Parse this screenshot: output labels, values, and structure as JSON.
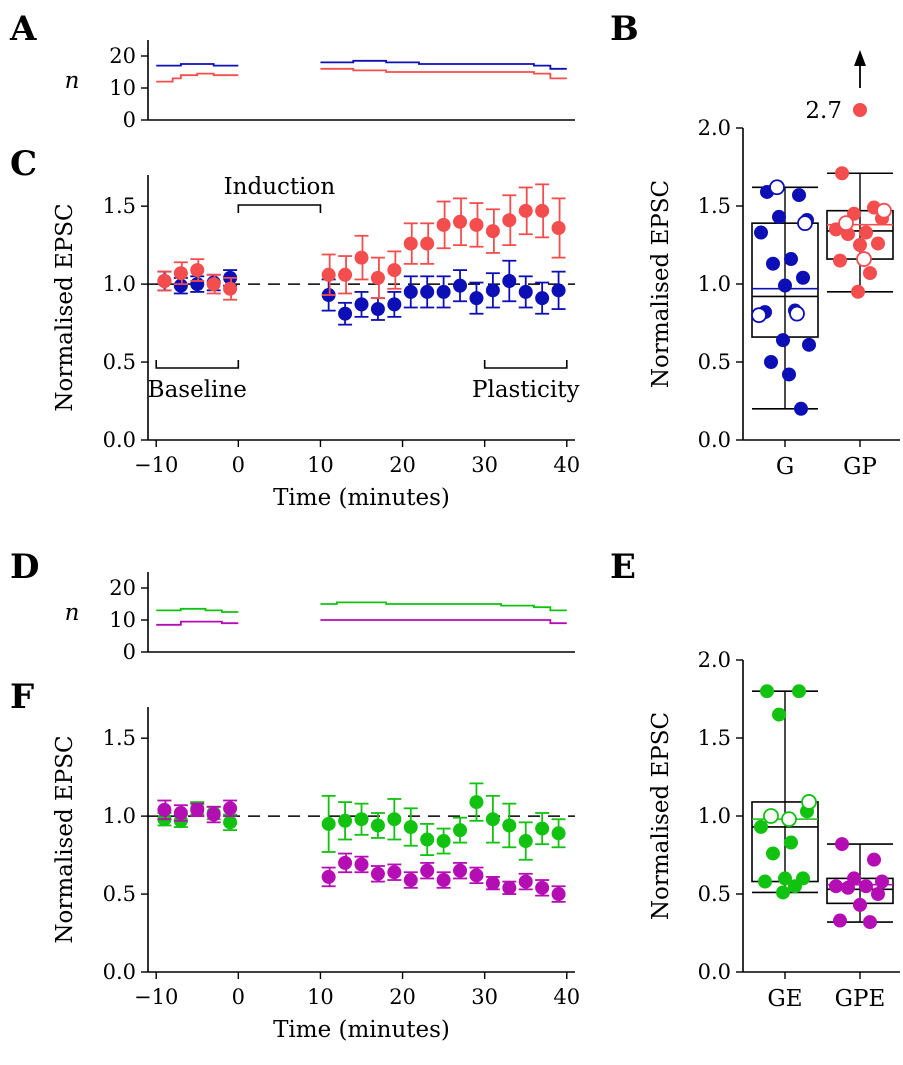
{
  "figure": {
    "panel_letters": [
      "A",
      "B",
      "C",
      "D",
      "E",
      "F"
    ],
    "n_label": "n",
    "epsc_label": "Normalised EPSC",
    "time_label": "Time (minutes)",
    "induction_label": "Induction",
    "baseline_label": "Baseline",
    "plasticity_label": "Plasticity",
    "outlier_label": "2.7"
  },
  "colors": {
    "red": "#f44d4d",
    "blue": "#0b0fb5",
    "green": "#11c211",
    "magenta": "#b40db4",
    "black": "#000000"
  },
  "chart_data": [
    {
      "panel": "A",
      "type": "line",
      "ylabel": "n",
      "ylim": [
        0,
        25
      ],
      "yticks": [
        0,
        10,
        20
      ],
      "xlim": [
        -11,
        41
      ],
      "series": [
        {
          "color": "blue",
          "segments": [
            {
              "x": [
                -10,
                -9,
                -8,
                -7,
                -6,
                -5,
                -4,
                -3,
                -2,
                -1,
                0
              ],
              "y": [
                17,
                17,
                17,
                17.5,
                17.5,
                17.5,
                17.5,
                17,
                17,
                17,
                17
              ]
            },
            {
              "x": [
                10,
                12,
                14,
                16,
                18,
                20,
                22,
                24,
                26,
                28,
                30,
                32,
                34,
                36,
                38,
                40
              ],
              "y": [
                18,
                18,
                18.5,
                18.5,
                18,
                18,
                17.5,
                17.5,
                17.5,
                17.5,
                17.5,
                17.5,
                17.5,
                17,
                16,
                16
              ]
            }
          ]
        },
        {
          "color": "red",
          "segments": [
            {
              "x": [
                -10,
                -9,
                -8,
                -7,
                -6,
                -5,
                -4,
                -3,
                -2,
                -1,
                0
              ],
              "y": [
                12,
                12,
                13,
                14,
                14,
                14.5,
                14.5,
                14,
                14,
                14,
                14
              ]
            },
            {
              "x": [
                10,
                12,
                14,
                16,
                18,
                20,
                22,
                24,
                26,
                28,
                30,
                32,
                34,
                36,
                38,
                40
              ],
              "y": [
                16,
                16,
                15.5,
                15.5,
                15,
                15,
                15,
                15,
                15,
                15,
                15,
                15,
                15,
                14.5,
                13,
                13
              ]
            }
          ]
        }
      ]
    },
    {
      "panel": "C",
      "type": "scatter",
      "xlabel": "Time (minutes)",
      "ylabel": "Normalised EPSC",
      "xlim": [
        -11,
        41
      ],
      "ylim": [
        0,
        1.7
      ],
      "xticks": [
        -10,
        0,
        10,
        20,
        30,
        40
      ],
      "xtick_labels": [
        "−10",
        "0",
        "10",
        "20",
        "30",
        "40"
      ],
      "yticks": [
        0,
        0.5,
        1.0,
        1.5
      ],
      "ytick_labels": [
        "0.0",
        "0.5",
        "1.0",
        "1.5"
      ],
      "reference_line": 1.0,
      "series": [
        {
          "color": "blue",
          "x": [
            -9,
            -7,
            -5,
            -3,
            -1,
            11,
            13,
            15,
            17,
            19,
            21,
            23,
            25,
            27,
            29,
            31,
            33,
            35,
            37,
            39
          ],
          "y": [
            1.02,
            0.99,
            1.0,
            1.01,
            1.04,
            0.93,
            0.81,
            0.87,
            0.84,
            0.87,
            0.95,
            0.95,
            0.95,
            0.99,
            0.91,
            0.96,
            1.02,
            0.95,
            0.91,
            0.96
          ],
          "err": [
            0.06,
            0.05,
            0.05,
            0.05,
            0.05,
            0.1,
            0.07,
            0.08,
            0.07,
            0.08,
            0.1,
            0.1,
            0.1,
            0.1,
            0.1,
            0.11,
            0.13,
            0.1,
            0.1,
            0.12
          ]
        },
        {
          "color": "red",
          "x": [
            -9,
            -7,
            -5,
            -3,
            -1,
            11,
            13,
            15,
            17,
            19,
            21,
            23,
            25,
            27,
            29,
            31,
            33,
            35,
            37,
            39
          ],
          "y": [
            1.02,
            1.07,
            1.09,
            1.0,
            0.97,
            1.06,
            1.06,
            1.17,
            1.04,
            1.09,
            1.26,
            1.26,
            1.38,
            1.4,
            1.38,
            1.34,
            1.41,
            1.47,
            1.47,
            1.36
          ],
          "err": [
            0.06,
            0.07,
            0.07,
            0.06,
            0.07,
            0.13,
            0.12,
            0.14,
            0.13,
            0.12,
            0.13,
            0.13,
            0.15,
            0.15,
            0.14,
            0.14,
            0.16,
            0.15,
            0.17,
            0.19
          ]
        }
      ],
      "annotations": {
        "induction": [
          0,
          10
        ],
        "baseline": [
          -10,
          0
        ],
        "plasticity": [
          30,
          40
        ]
      }
    },
    {
      "panel": "B",
      "type": "box",
      "ylabel": "Normalised EPSC",
      "ylim": [
        0,
        2.0
      ],
      "yticks": [
        0,
        0.5,
        1.0,
        1.5,
        2.0
      ],
      "ytick_labels": [
        "0.0",
        "0.5",
        "1.0",
        "1.5",
        "2.0"
      ],
      "groups": [
        {
          "label": "G",
          "color": "blue",
          "mean": 0.97,
          "median": 0.92,
          "q1": 0.66,
          "q3": 1.39,
          "whisker_low": 0.2,
          "whisker_high": 1.62,
          "filled": [
            1.59,
            1.57,
            1.43,
            1.41,
            1.33,
            1.16,
            1.13,
            1.04,
            0.99,
            0.82,
            0.83,
            0.64,
            0.61,
            0.5,
            0.42,
            0.2
          ],
          "open": [
            1.62,
            1.39,
            0.8,
            0.81
          ]
        },
        {
          "label": "GP",
          "color": "red",
          "mean": 1.38,
          "median": 1.34,
          "q1": 1.16,
          "q3": 1.47,
          "whisker_low": 0.95,
          "whisker_high": 1.71,
          "filled": [
            1.71,
            1.49,
            1.45,
            1.42,
            1.35,
            1.33,
            1.32,
            1.26,
            1.25,
            1.15,
            1.07,
            0.95
          ],
          "open": [
            1.47,
            1.39,
            1.16
          ],
          "outlier": 2.7
        }
      ]
    },
    {
      "panel": "D",
      "type": "line",
      "ylabel": "n",
      "ylim": [
        0,
        25
      ],
      "yticks": [
        0,
        10,
        20
      ],
      "xlim": [
        -11,
        41
      ],
      "series": [
        {
          "color": "green",
          "segments": [
            {
              "x": [
                -10,
                -8,
                -7,
                -6,
                -5,
                -4,
                -3,
                -2,
                -1,
                0
              ],
              "y": [
                13,
                13,
                13.5,
                13.5,
                13.5,
                13,
                13,
                12.5,
                12.5,
                12.5
              ]
            },
            {
              "x": [
                10,
                12,
                14,
                16,
                18,
                20,
                22,
                24,
                26,
                28,
                30,
                32,
                34,
                36,
                38,
                40
              ],
              "y": [
                15,
                15.5,
                15.5,
                15.5,
                15,
                15,
                15,
                15,
                15,
                15,
                15,
                14.5,
                14.5,
                14,
                13,
                13
              ]
            }
          ]
        },
        {
          "color": "magenta",
          "segments": [
            {
              "x": [
                -10,
                -8,
                -7,
                -6,
                -5,
                -4,
                -3,
                -2,
                -1,
                0
              ],
              "y": [
                8.5,
                8.5,
                9.5,
                9.5,
                9.5,
                9.5,
                9.5,
                9,
                9,
                9
              ]
            },
            {
              "x": [
                10,
                12,
                14,
                16,
                18,
                20,
                22,
                24,
                26,
                28,
                30,
                32,
                34,
                36,
                38,
                40
              ],
              "y": [
                10,
                10,
                10,
                10,
                10,
                10,
                10,
                10,
                10,
                10,
                10,
                10,
                10,
                10,
                9,
                9
              ]
            }
          ]
        }
      ]
    },
    {
      "panel": "F",
      "type": "scatter",
      "xlabel": "Time (minutes)",
      "ylabel": "Normalised EPSC",
      "xlim": [
        -11,
        41
      ],
      "ylim": [
        0,
        1.7
      ],
      "xticks": [
        -10,
        0,
        10,
        20,
        30,
        40
      ],
      "xtick_labels": [
        "−10",
        "0",
        "10",
        "20",
        "30",
        "40"
      ],
      "yticks": [
        0,
        0.5,
        1.0,
        1.5
      ],
      "ytick_labels": [
        "0.0",
        "0.5",
        "1.0",
        "1.5"
      ],
      "reference_line": 1.0,
      "series": [
        {
          "color": "green",
          "x": [
            -9,
            -7,
            -5,
            -3,
            -1,
            11,
            13,
            15,
            17,
            19,
            21,
            23,
            25,
            27,
            29,
            31,
            33,
            35,
            37,
            39
          ],
          "y": [
            0.98,
            0.97,
            1.05,
            1.02,
            0.96,
            0.95,
            0.97,
            0.98,
            0.94,
            0.98,
            0.93,
            0.85,
            0.84,
            0.91,
            1.09,
            0.98,
            0.94,
            0.84,
            0.92,
            0.89
          ],
          "err": [
            0.04,
            0.04,
            0.04,
            0.04,
            0.05,
            0.18,
            0.12,
            0.1,
            0.08,
            0.13,
            0.12,
            0.1,
            0.08,
            0.08,
            0.12,
            0.15,
            0.14,
            0.12,
            0.1,
            0.09
          ]
        },
        {
          "color": "magenta",
          "x": [
            -9,
            -7,
            -5,
            -3,
            -1,
            11,
            13,
            15,
            17,
            19,
            21,
            23,
            25,
            27,
            29,
            31,
            33,
            35,
            37,
            39
          ],
          "y": [
            1.04,
            1.02,
            1.04,
            1.01,
            1.05,
            0.61,
            0.7,
            0.69,
            0.63,
            0.64,
            0.59,
            0.65,
            0.59,
            0.65,
            0.62,
            0.57,
            0.54,
            0.58,
            0.54,
            0.5
          ],
          "err": [
            0.06,
            0.05,
            0.04,
            0.05,
            0.05,
            0.06,
            0.06,
            0.05,
            0.05,
            0.05,
            0.05,
            0.05,
            0.05,
            0.05,
            0.05,
            0.04,
            0.04,
            0.05,
            0.05,
            0.05
          ]
        }
      ]
    },
    {
      "panel": "E",
      "type": "box",
      "ylabel": "Normalised EPSC",
      "ylim": [
        0,
        2.0
      ],
      "yticks": [
        0,
        0.5,
        1.0,
        1.5,
        2.0
      ],
      "ytick_labels": [
        "0.0",
        "0.5",
        "1.0",
        "1.5",
        "2.0"
      ],
      "groups": [
        {
          "label": "GE",
          "color": "green",
          "mean": 0.98,
          "median": 0.93,
          "q1": 0.58,
          "q3": 1.09,
          "whisker_low": 0.51,
          "whisker_high": 1.8,
          "filled": [
            1.8,
            1.8,
            1.65,
            1.03,
            0.93,
            0.83,
            0.76,
            0.6,
            0.6,
            0.58,
            0.55,
            0.51
          ],
          "open": [
            1.09,
            1.0,
            0.98
          ]
        },
        {
          "label": "GPE",
          "color": "magenta",
          "mean": 0.56,
          "median": 0.53,
          "q1": 0.44,
          "q3": 0.6,
          "whisker_low": 0.32,
          "whisker_high": 0.82,
          "filled": [
            0.82,
            0.72,
            0.6,
            0.58,
            0.55,
            0.55,
            0.54,
            0.5,
            0.43,
            0.33,
            0.32
          ],
          "open": []
        }
      ]
    }
  ]
}
